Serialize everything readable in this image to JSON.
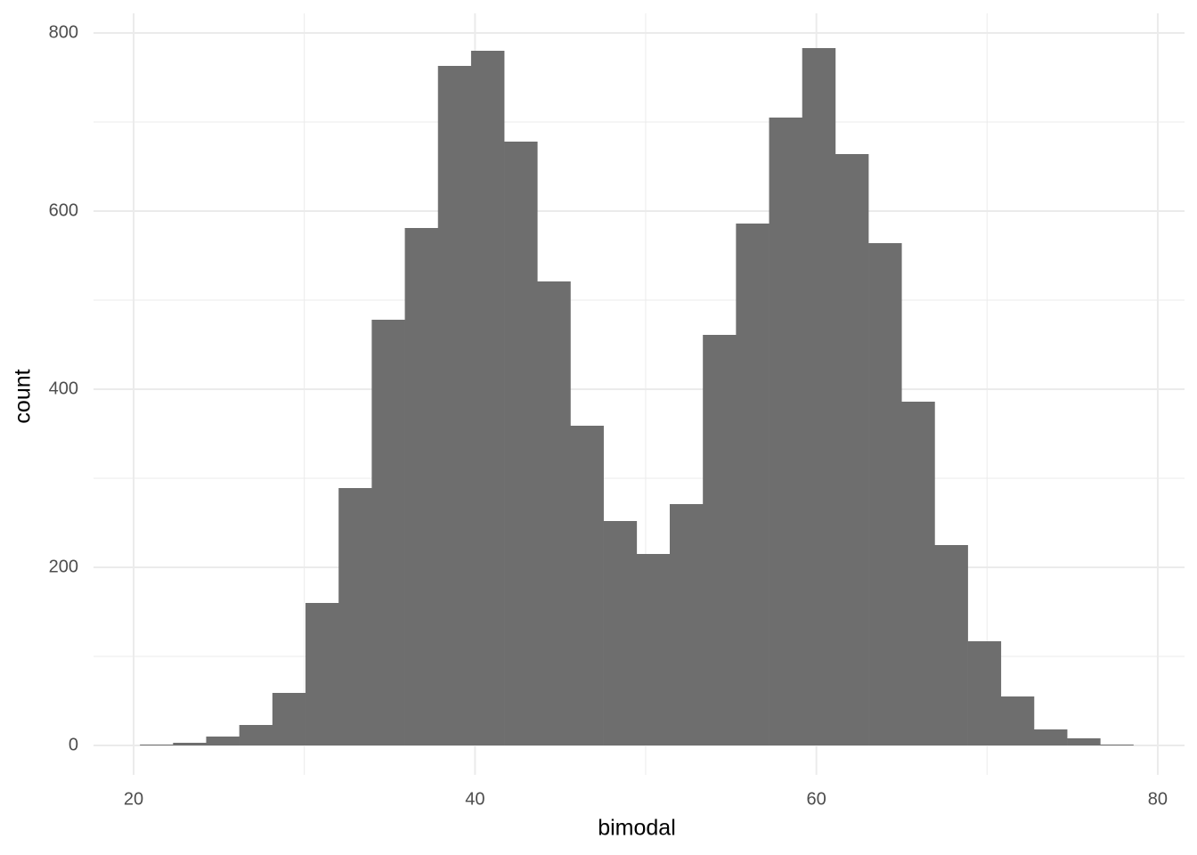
{
  "chart_data": {
    "type": "histogram",
    "x_label": "bimodal",
    "y_label": "count",
    "bins": [
      20.37,
      22.31,
      24.25,
      26.19,
      28.13,
      30.07,
      32.01,
      33.95,
      35.89,
      37.83,
      39.77,
      41.71,
      43.65,
      45.59,
      47.53,
      49.47,
      51.41,
      53.35,
      55.29,
      57.23,
      59.17,
      61.11,
      63.05,
      64.99,
      66.93,
      68.87,
      70.81,
      72.75,
      74.69,
      76.63,
      78.57
    ],
    "values": [
      1,
      3,
      10,
      23,
      59,
      160,
      289,
      478,
      581,
      763,
      780,
      678,
      521,
      359,
      252,
      215,
      271,
      461,
      586,
      705,
      783,
      664,
      564,
      386,
      225,
      117,
      55,
      18,
      8,
      1
    ],
    "color": "#6e6e6e",
    "xlim": [
      17.65,
      81.57
    ],
    "xticks": [
      20,
      40,
      60,
      80
    ],
    "xminor": [
      30,
      50,
      70
    ],
    "ylim": [
      -33,
      822
    ],
    "yticks": [
      0,
      200,
      400,
      600,
      800
    ],
    "yminor": [
      100,
      300,
      500,
      700
    ],
    "grid": true
  }
}
